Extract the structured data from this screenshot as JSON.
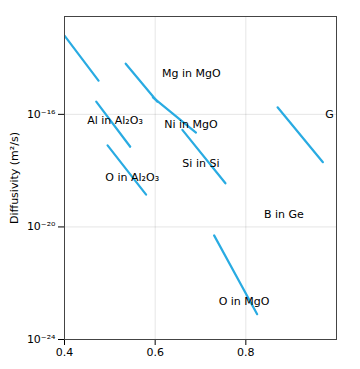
{
  "chart_data": {
    "type": "line",
    "ylabel": "Diffusivity (m²/s)",
    "log": "y",
    "grid": true,
    "color": "#29ABE2",
    "xlim": [
      0.4,
      1.0
    ],
    "xticks": [
      0.4,
      0.6,
      0.8
    ],
    "ylim": [
      1e-24,
      3e-13
    ],
    "yticks": [
      {
        "value": 1e-24,
        "label": "10⁻²⁴"
      },
      {
        "value": 1e-20,
        "label": "10⁻²⁰"
      },
      {
        "value": 1e-16,
        "label": "10⁻¹⁶"
      }
    ],
    "series": [
      {
        "x": [
          0.4,
          0.475
        ],
        "values": [
          6.30957344480193e-14,
          1.584893192461113e-15
        ]
      },
      {
        "x": [
          0.535,
          0.605
        ],
        "values": [
          6.30957344480193e-15,
          2.818382931264454e-16
        ]
      },
      {
        "x": [
          0.595,
          0.69
        ],
        "values": [
          3.981071705534972e-16,
          2.238721138568339e-17
        ]
      },
      {
        "x": [
          0.47,
          0.545
        ],
        "values": [
          2.818382931264454e-16,
          7.079457843841379e-18
        ]
      },
      {
        "x": [
          0.495,
          0.58
        ],
        "values": [
          7.943282347242816e-18,
          1.412537544622754e-19
        ]
      },
      {
        "x": [
          0.66,
          0.755
        ],
        "values": [
          2.818382931264454e-17,
          3.548133892335755e-19
        ]
      },
      {
        "x": [
          0.73,
          0.825
        ],
        "values": [
          5.011872336272722e-21,
          7.943282347242815e-24
        ]
      },
      {
        "x": [
          0.87,
          0.97
        ],
        "values": [
          1.778279410038923e-16,
          1.99526231496888e-18
        ]
      }
    ],
    "annotations": [
      {
        "text": "Mg in MgO",
        "x": 0.615,
        "y": 2.818382931264454e-15
      },
      {
        "text": "Ni in MgO",
        "x": 0.62,
        "y": 4.466835921509631e-17
      },
      {
        "text": "Al in Al₂O₃",
        "x": 0.45,
        "y": 6.309573444801933e-17
      },
      {
        "text": "O in Al₂O₃",
        "x": 0.49,
        "y": 5.623413251903491e-19
      },
      {
        "text": "Si in Si",
        "x": 0.66,
        "y": 1.778279410038923e-18
      },
      {
        "text": "O in MgO",
        "x": 0.74,
        "y": 2.238721138568339e-23
      },
      {
        "text": "G",
        "x": 0.975,
        "y": 1e-16
      },
      {
        "text": "B in Ge",
        "x": 0.84,
        "y": 2.818382931264454e-20
      }
    ]
  }
}
